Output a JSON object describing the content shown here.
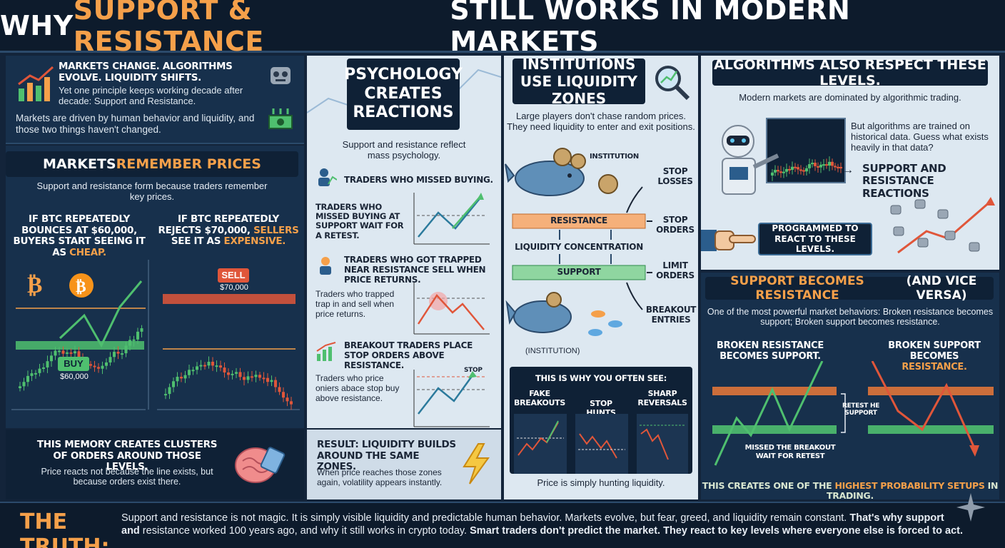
{
  "title": {
    "pre": "WHY ",
    "hl": "SUPPORT & RESISTANCE",
    "post": " STILL WORKS IN MODERN MARKETS"
  },
  "intro": {
    "heading": "MARKETS CHANGE. ALGORITHMS EVOLVE. LIQUIDITY SHIFTS.",
    "line": "Yet one principle keeps working decade after decade: Support and Resistance.",
    "body": "Markets are driven by human behavior and liquidity, and those two things haven't changed."
  },
  "remember": {
    "head_pre": "MARKETS ",
    "head_hl": "REMEMBER PRICES",
    "sub": "Support and resistance form because traders remember key prices.",
    "left_pre": "IF BTC REPEATEDLY BOUNCES AT $60,000, BUYERS START SEEING IT AS ",
    "left_hl": "CHEAP.",
    "right_pre": "IF BTC REPEATEDLY REJECTS $70,000, ",
    "right_hl": "SELLERS",
    "right_mid": " SEE IT AS ",
    "right_hl2": "EXPENSIVE.",
    "buy_label": "BUY",
    "buy_price": "$60,000",
    "sell_label": "SELL",
    "sell_price": "$70,000",
    "memory_head": "THIS MEMORY CREATES CLUSTERS OF ORDERS AROUND THOSE LEVELS.",
    "memory_body": "Price reacts not because the line exists, but because orders exist there."
  },
  "psych": {
    "head": "PSYCHOLOGY CREATES REACTIONS",
    "sub": "Support and resistance reflect mass psychology.",
    "i1": "TRADERS WHO MISSED BUYING.",
    "i1b": "TRADERS WHO MISSED BUYING AT SUPPORT WAIT FOR A RETEST.",
    "i2": "TRADERS WHO GOT TRAPPED NEAR RESISTANCE SELL WHEN PRICE RETURNS.",
    "i2b": "Traders who trapped trap in and sell when price returns.",
    "i3": "BREAKOUT TRADERS PLACE STOP ORDERS ABOVE RESISTANCE.",
    "i3b": "Traders who price oniers abace stop buy above resistance.",
    "stop": "STOP",
    "result_head": "RESULT: LIQUIDITY BUILDS AROUND THE SAME ZONES.",
    "result_body": "When price reaches those zones again, volatility appears instantly."
  },
  "inst": {
    "head": "INSTITUTIONS USE LIQUIDITY ZONES",
    "sub": "Large players don't chase random prices. They need liquidity to enter and exit positions.",
    "institution": "INSTITUTION",
    "institution2": "(INSTITUTION)",
    "stop_losses": "STOP LOSSES",
    "stop_orders": "STOP ORDERS",
    "limit_orders": "LIMIT ORDERS",
    "breakout_entries": "BREAKOUT ENTRIES",
    "resistance": "RESISTANCE",
    "support": "SUPPORT",
    "liq": "LIQUIDITY CONCENTRATION",
    "why": "THIS IS WHY YOU OFTEN SEE:",
    "c1": "FAKE BREAKOUTS",
    "c2": "STOP HUNTS",
    "c3": "SHARP REVERSALS",
    "foot": "Price is simply hunting liquidity."
  },
  "algo": {
    "head": "ALGORITHMS ALSO RESPECT THESE LEVELS.",
    "sub": "Modern markets are dominated by algorithmic trading.",
    "p": "But algorithms are trained on historical data. Guess what exists heavily in that data?",
    "arrow": "SUPPORT AND RESISTANCE REACTIONS",
    "prog": "PROGRAMMED TO REACT TO THESE LEVELS."
  },
  "flip": {
    "head_hl": "SUPPORT BECOMES RESISTANCE",
    "head_rest": " (AND VICE VERSA)",
    "sub": "One of the most powerful market behaviors: Broken resistance becomes support; Broken support becomes resistance.",
    "l": "BROKEN RESISTANCE BECOMES SUPPORT.",
    "r_pre": "BROKEN SUPPORT BECOMES ",
    "r_hl": "RESISTANCE.",
    "retest": "RETEST HE SUPPORT",
    "missed": "MISSED THE BREAKOUT WAIT FOR RETEST",
    "foot_pre": "THIS CREATES ONE OF THE ",
    "foot_hl": "HIGHEST PROBABILITY SETUPS",
    "foot_post": " IN TRADING."
  },
  "truth": {
    "label": "THE TRUTH:",
    "a": "Support and resistance is not magic. It is simply visible liquidity and predictable human behavior. Markets evolve, but fear, greed, and liquidity remain constant. ",
    "b": "That's why support and",
    "c": " resistance worked 100 years ago, and why it still works in crypto today. ",
    "d": "Smart traders don't predict the market. They react to key levels where everyone else is forced to act."
  },
  "colors": {
    "orange": "#f5a04a",
    "green": "#4fbf6f",
    "red": "#e0563a",
    "navy": "#0f2136"
  }
}
